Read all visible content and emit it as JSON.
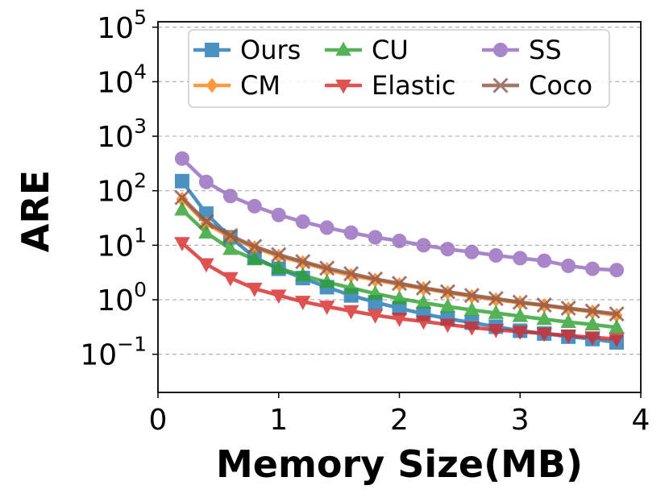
{
  "chart_data": {
    "type": "line",
    "title": "",
    "xlabel": "Memory Size(MB)",
    "ylabel": "ARE",
    "xlim": [
      0,
      4
    ],
    "ylim_log10": [
      -1.7,
      5.1
    ],
    "yscale": "log",
    "grid": "horizontal dashed",
    "legend": "top, 3 columns",
    "x_ticks": [
      "0",
      "1",
      "2",
      "3",
      "4"
    ],
    "y_ticks": [
      {
        "base": "10",
        "exp": "5"
      },
      {
        "base": "10",
        "exp": "4"
      },
      {
        "base": "10",
        "exp": "3"
      },
      {
        "base": "10",
        "exp": "2"
      },
      {
        "base": "10",
        "exp": "1"
      },
      {
        "base": "10",
        "exp": "0"
      },
      {
        "base": "10",
        "exp": "−1"
      }
    ],
    "x": [
      0.2,
      0.4,
      0.6,
      0.8,
      1.0,
      1.2,
      1.4,
      1.6,
      1.8,
      2.0,
      2.2,
      2.4,
      2.6,
      2.8,
      3.0,
      3.2,
      3.4,
      3.6,
      3.8
    ],
    "series": [
      {
        "name": "Ours",
        "color": "#1f77b4",
        "marker": "square",
        "values": [
          150,
          38,
          14,
          6.0,
          3.7,
          2.5,
          1.7,
          1.2,
          0.9,
          0.7,
          0.55,
          0.45,
          0.38,
          0.32,
          0.27,
          0.24,
          0.21,
          0.19,
          0.165
        ]
      },
      {
        "name": "CM",
        "color": "#ff7f0e",
        "marker": "diamond",
        "values": [
          70,
          25,
          14,
          9.0,
          6.3,
          4.8,
          3.6,
          2.8,
          2.3,
          1.9,
          1.6,
          1.35,
          1.15,
          1.0,
          0.88,
          0.78,
          0.68,
          0.6,
          0.52
        ]
      },
      {
        "name": "CU",
        "color": "#2ca02c",
        "marker": "triangle-up",
        "values": [
          45,
          17,
          8.5,
          5.5,
          3.8,
          2.8,
          2.1,
          1.65,
          1.3,
          1.05,
          0.88,
          0.75,
          0.65,
          0.57,
          0.5,
          0.44,
          0.39,
          0.35,
          0.31
        ]
      },
      {
        "name": "Elastic",
        "color": "#d62728",
        "marker": "triangle-down",
        "values": [
          11,
          4.5,
          2.5,
          1.6,
          1.2,
          0.92,
          0.75,
          0.62,
          0.52,
          0.45,
          0.4,
          0.35,
          0.31,
          0.28,
          0.26,
          0.24,
          0.22,
          0.205,
          0.19
        ]
      },
      {
        "name": "SS",
        "color": "#9467bd",
        "marker": "circle",
        "values": [
          390,
          145,
          80,
          52,
          36,
          27,
          21,
          17,
          14,
          12,
          10,
          8.5,
          7.5,
          6.5,
          5.8,
          5.2,
          4.2,
          3.7,
          3.5
        ]
      },
      {
        "name": "Coco",
        "color": "#8c564b",
        "marker": "x",
        "values": [
          75,
          27,
          15,
          9.5,
          6.7,
          5.0,
          3.8,
          3.0,
          2.4,
          2.0,
          1.65,
          1.4,
          1.2,
          1.05,
          0.9,
          0.8,
          0.7,
          0.62,
          0.55
        ]
      }
    ]
  }
}
